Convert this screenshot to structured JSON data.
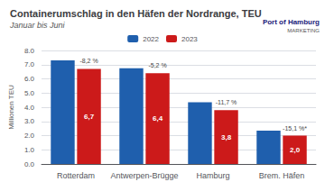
{
  "chart_data": {
    "type": "bar",
    "title": "Containerumschlag in den Häfen der Nordrange, TEU",
    "subtitle": "Januar bis Juni",
    "categories": [
      "Rotterdam",
      "Antwerpen-Brügge",
      "Hamburg",
      "Brem. Häfen"
    ],
    "series": [
      {
        "name": "2022",
        "color": "#1f5fad",
        "values": [
          7.3,
          6.75,
          4.35,
          2.35
        ]
      },
      {
        "name": "2023",
        "color": "#cc1a1a",
        "values": [
          6.7,
          6.4,
          3.8,
          2.0
        ],
        "data_labels": true,
        "value_labels": [
          "6,7",
          "6,4",
          "3,8",
          "2,0"
        ]
      }
    ],
    "ylabel": "Millionen TEU",
    "ylim": [
      0,
      8.0
    ],
    "yticks": [
      {
        "value": 0.0,
        "label": "0.0"
      },
      {
        "value": 1.0,
        "label": "1.0"
      },
      {
        "value": 2.0,
        "label": "2.0"
      },
      {
        "value": 3.0,
        "label": "3.0"
      },
      {
        "value": 4.0,
        "label": "4.0"
      },
      {
        "value": 5.0,
        "label": "5.0"
      },
      {
        "value": 6.0,
        "label": "6.0"
      },
      {
        "value": 7.0,
        "label": "7.0"
      },
      {
        "value": 8.0,
        "label": "8.0"
      }
    ],
    "grid": true,
    "legend": "upper center",
    "annotations": [
      {
        "text": "-8,2 %",
        "category": "Rotterdam",
        "series": "2023"
      },
      {
        "text": "-5,2 %",
        "category": "Antwerpen-Brügge",
        "series": "2023"
      },
      {
        "text": "-11,7 %",
        "category": "Hamburg",
        "series": "2023"
      },
      {
        "text": "-15,1 %*",
        "category": "Brem. Häfen",
        "series": "2023"
      },
      {
        "text": "Port of Hamburg"
      },
      {
        "text": "MARKETING"
      }
    ]
  }
}
